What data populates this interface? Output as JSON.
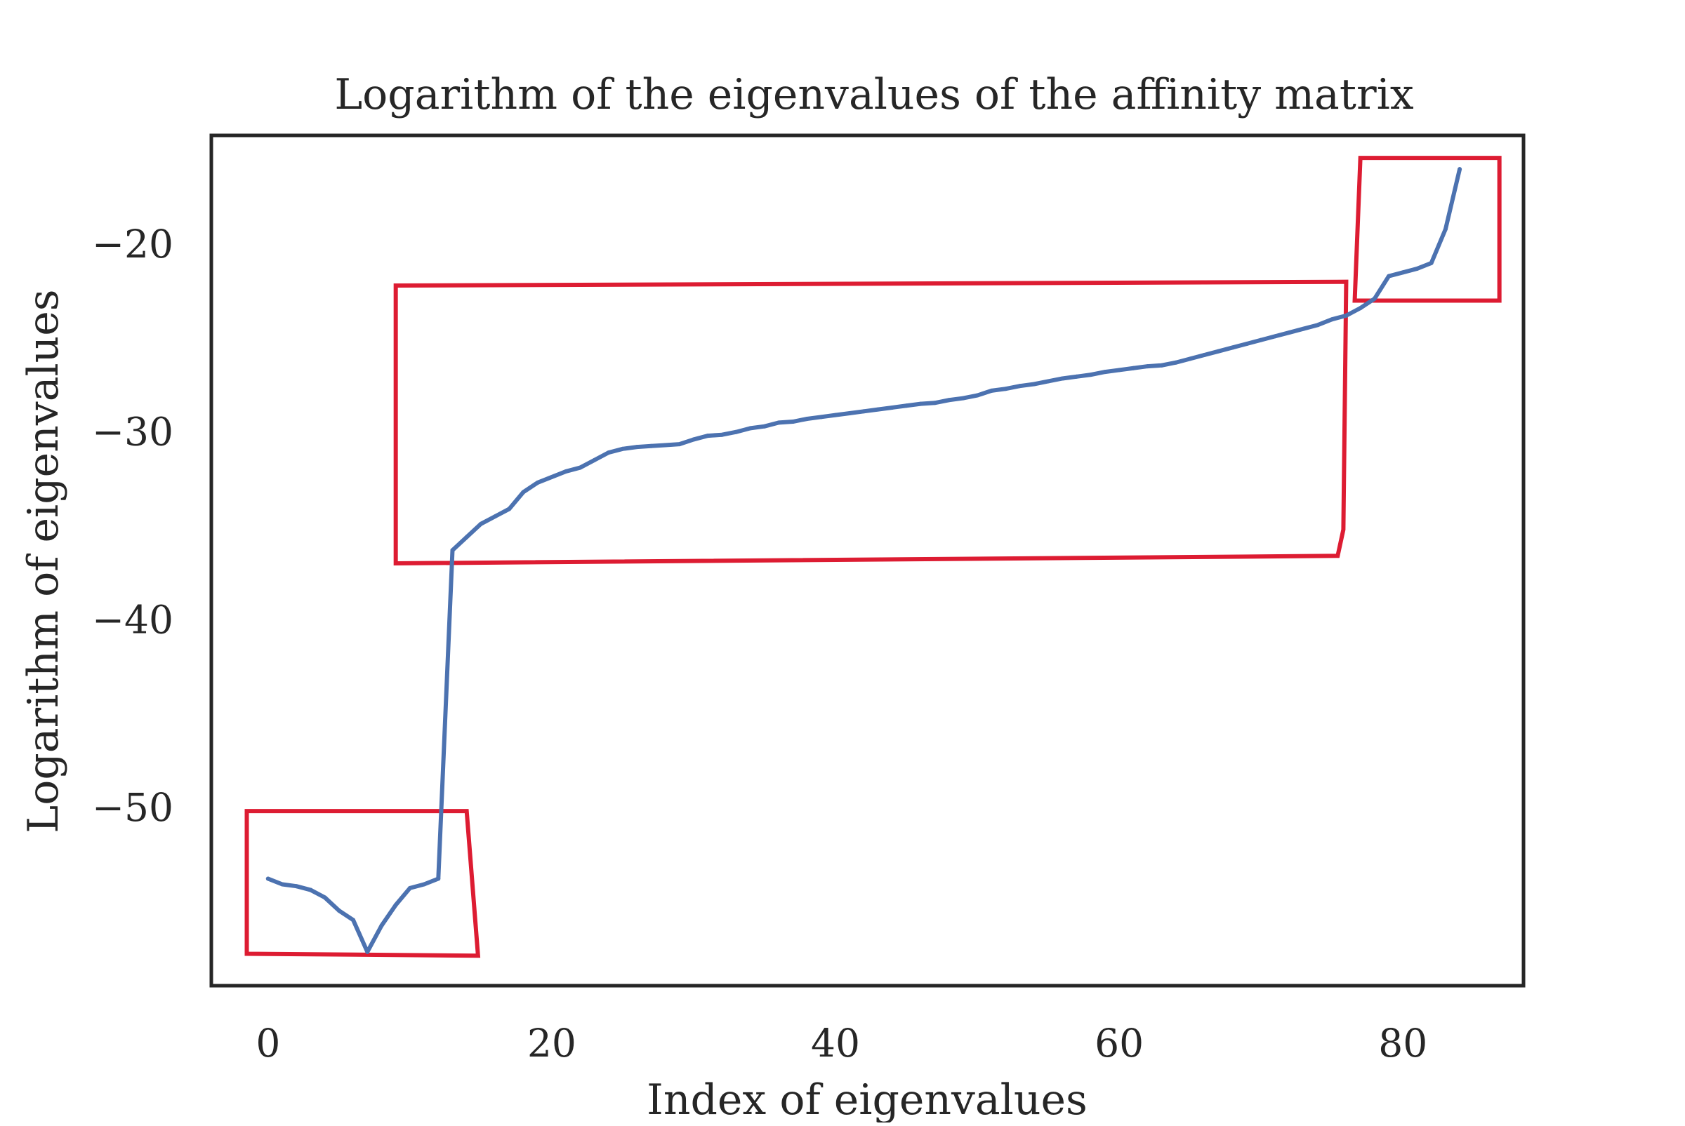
{
  "chart_data": {
    "type": "line",
    "title": "Logarithm of the eigenvalues of the affinity matrix",
    "xlabel": "Index of eigenvalues",
    "ylabel": "Logarithm of eigenvalues",
    "xlim": [
      -4.0,
      88.5
    ],
    "ylim": [
      -59.5,
      -14.2
    ],
    "x_ticks": [
      0,
      20,
      40,
      60,
      80
    ],
    "y_ticks": [
      -50,
      -40,
      -30,
      -20
    ],
    "x_tick_labels": [
      "0",
      "20",
      "40",
      "60",
      "80"
    ],
    "y_tick_labels": [
      "−50",
      "−40",
      "−30",
      "−20"
    ],
    "grid": false,
    "legend": "none",
    "series": [
      {
        "color": "#4c72b0",
        "x": [
          0,
          1,
          2,
          3,
          4,
          5,
          6,
          7,
          8,
          9,
          10,
          11,
          12,
          13,
          14,
          15,
          16,
          17,
          18,
          19,
          20,
          21,
          22,
          23,
          24,
          25,
          26,
          27,
          28,
          29,
          30,
          31,
          32,
          33,
          34,
          35,
          36,
          37,
          38,
          39,
          40,
          41,
          42,
          43,
          44,
          45,
          46,
          47,
          48,
          49,
          50,
          51,
          52,
          53,
          54,
          55,
          56,
          57,
          58,
          59,
          60,
          61,
          62,
          63,
          64,
          65,
          66,
          67,
          68,
          69,
          70,
          71,
          72,
          73,
          74,
          75,
          76,
          77,
          78,
          79,
          80,
          81,
          82,
          83,
          84
        ],
        "y": [
          -53.8,
          -54.1,
          -54.2,
          -54.4,
          -54.8,
          -55.5,
          -56.0,
          -57.7,
          -56.3,
          -55.2,
          -54.3,
          -54.1,
          -53.8,
          -36.3,
          -35.6,
          -34.9,
          -34.5,
          -34.1,
          -33.2,
          -32.7,
          -32.4,
          -32.1,
          -31.9,
          -31.5,
          -31.1,
          -30.9,
          -30.8,
          -30.75,
          -30.7,
          -30.65,
          -30.4,
          -30.2,
          -30.15,
          -30.0,
          -29.8,
          -29.7,
          -29.5,
          -29.45,
          -29.3,
          -29.2,
          -29.1,
          -29.0,
          -28.9,
          -28.8,
          -28.7,
          -28.6,
          -28.5,
          -28.45,
          -28.3,
          -28.2,
          -28.05,
          -27.8,
          -27.7,
          -27.55,
          -27.45,
          -27.3,
          -27.15,
          -27.05,
          -26.95,
          -26.8,
          -26.7,
          -26.6,
          -26.5,
          -26.45,
          -26.3,
          -26.1,
          -25.9,
          -25.7,
          -25.5,
          -25.3,
          -25.1,
          -24.9,
          -24.7,
          -24.5,
          -24.3,
          -24.0,
          -23.8,
          -23.4,
          -22.9,
          -21.7,
          -21.5,
          -21.3,
          -21.0,
          -19.2,
          -16.0
        ]
      }
    ],
    "annotations": [
      {
        "shape": "box",
        "color": "#dd1c32",
        "corners": [
          [
            -1.5,
            -50.2
          ],
          [
            14.0,
            -50.2
          ],
          [
            14.8,
            -57.9
          ],
          [
            -1.5,
            -57.8
          ]
        ]
      },
      {
        "shape": "box",
        "color": "#dd1c32",
        "corners": [
          [
            9.0,
            -22.2
          ],
          [
            76.0,
            -22.0
          ],
          [
            75.8,
            -35.2
          ],
          [
            75.4,
            -36.6
          ],
          [
            9.0,
            -37.0
          ]
        ]
      },
      {
        "shape": "box",
        "color": "#dd1c32",
        "corners": [
          [
            77.0,
            -15.4
          ],
          [
            86.8,
            -15.4
          ],
          [
            86.8,
            -23.0
          ],
          [
            76.6,
            -23.0
          ]
        ]
      }
    ]
  }
}
